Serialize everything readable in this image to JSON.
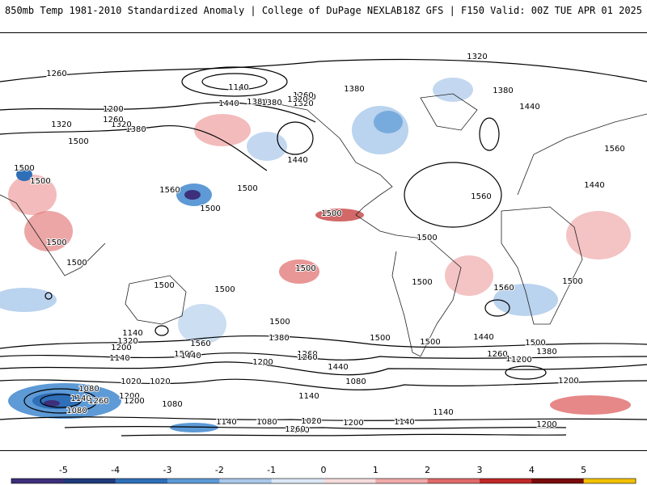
{
  "header": {
    "title_left": "850mb Temp 1981-2010 Standardized Anomaly | College of DuPage NEXLAB",
    "title_right": "18Z GFS | F150 Valid: 00Z TUE APR 01 2025"
  },
  "colorbar": {
    "ticks": [
      "-5",
      "-4",
      "-3",
      "-2",
      "-1",
      "0",
      "1",
      "2",
      "3",
      "4",
      "5"
    ],
    "colors": [
      "#3d2f7a",
      "#203a7a",
      "#2f6fb8",
      "#5d9ad6",
      "#a9c8ea",
      "#dbe8f5",
      "#f6dcdc",
      "#f0aaaa",
      "#e06a6a",
      "#c02828",
      "#7a0c0c",
      "#f2c200"
    ]
  },
  "contour_labels": [
    "1260",
    "1140",
    "1200",
    "1440",
    "1380",
    "1260",
    "1320",
    "1260",
    "1320",
    "1380",
    "1500",
    "1440",
    "1500",
    "1380",
    "1320",
    "1380",
    "1440",
    "1500",
    "1560",
    "1560",
    "1500",
    "1500",
    "1500",
    "1560",
    "1500",
    "1500",
    "1500",
    "1500",
    "1500",
    "1500",
    "1500",
    "1500",
    "1500",
    "1500",
    "1500",
    "1560",
    "1440",
    "1560",
    "1500",
    "1440",
    "1320",
    "1380",
    "1320",
    "1260",
    "1200",
    "1500",
    "1440",
    "1380",
    "1440",
    "1380",
    "1260",
    "1200",
    "1140",
    "1200",
    "1140",
    "1320",
    "1260",
    "1200",
    "1260",
    "1200",
    "1080",
    "1140",
    "1020",
    "1020",
    "1080",
    "1260",
    "1080",
    "1200",
    "1140",
    "1080",
    "1020",
    "1140",
    "1200",
    "1260",
    "1080",
    "1140",
    "1200",
    "1140",
    "1200",
    "1260"
  ]
}
